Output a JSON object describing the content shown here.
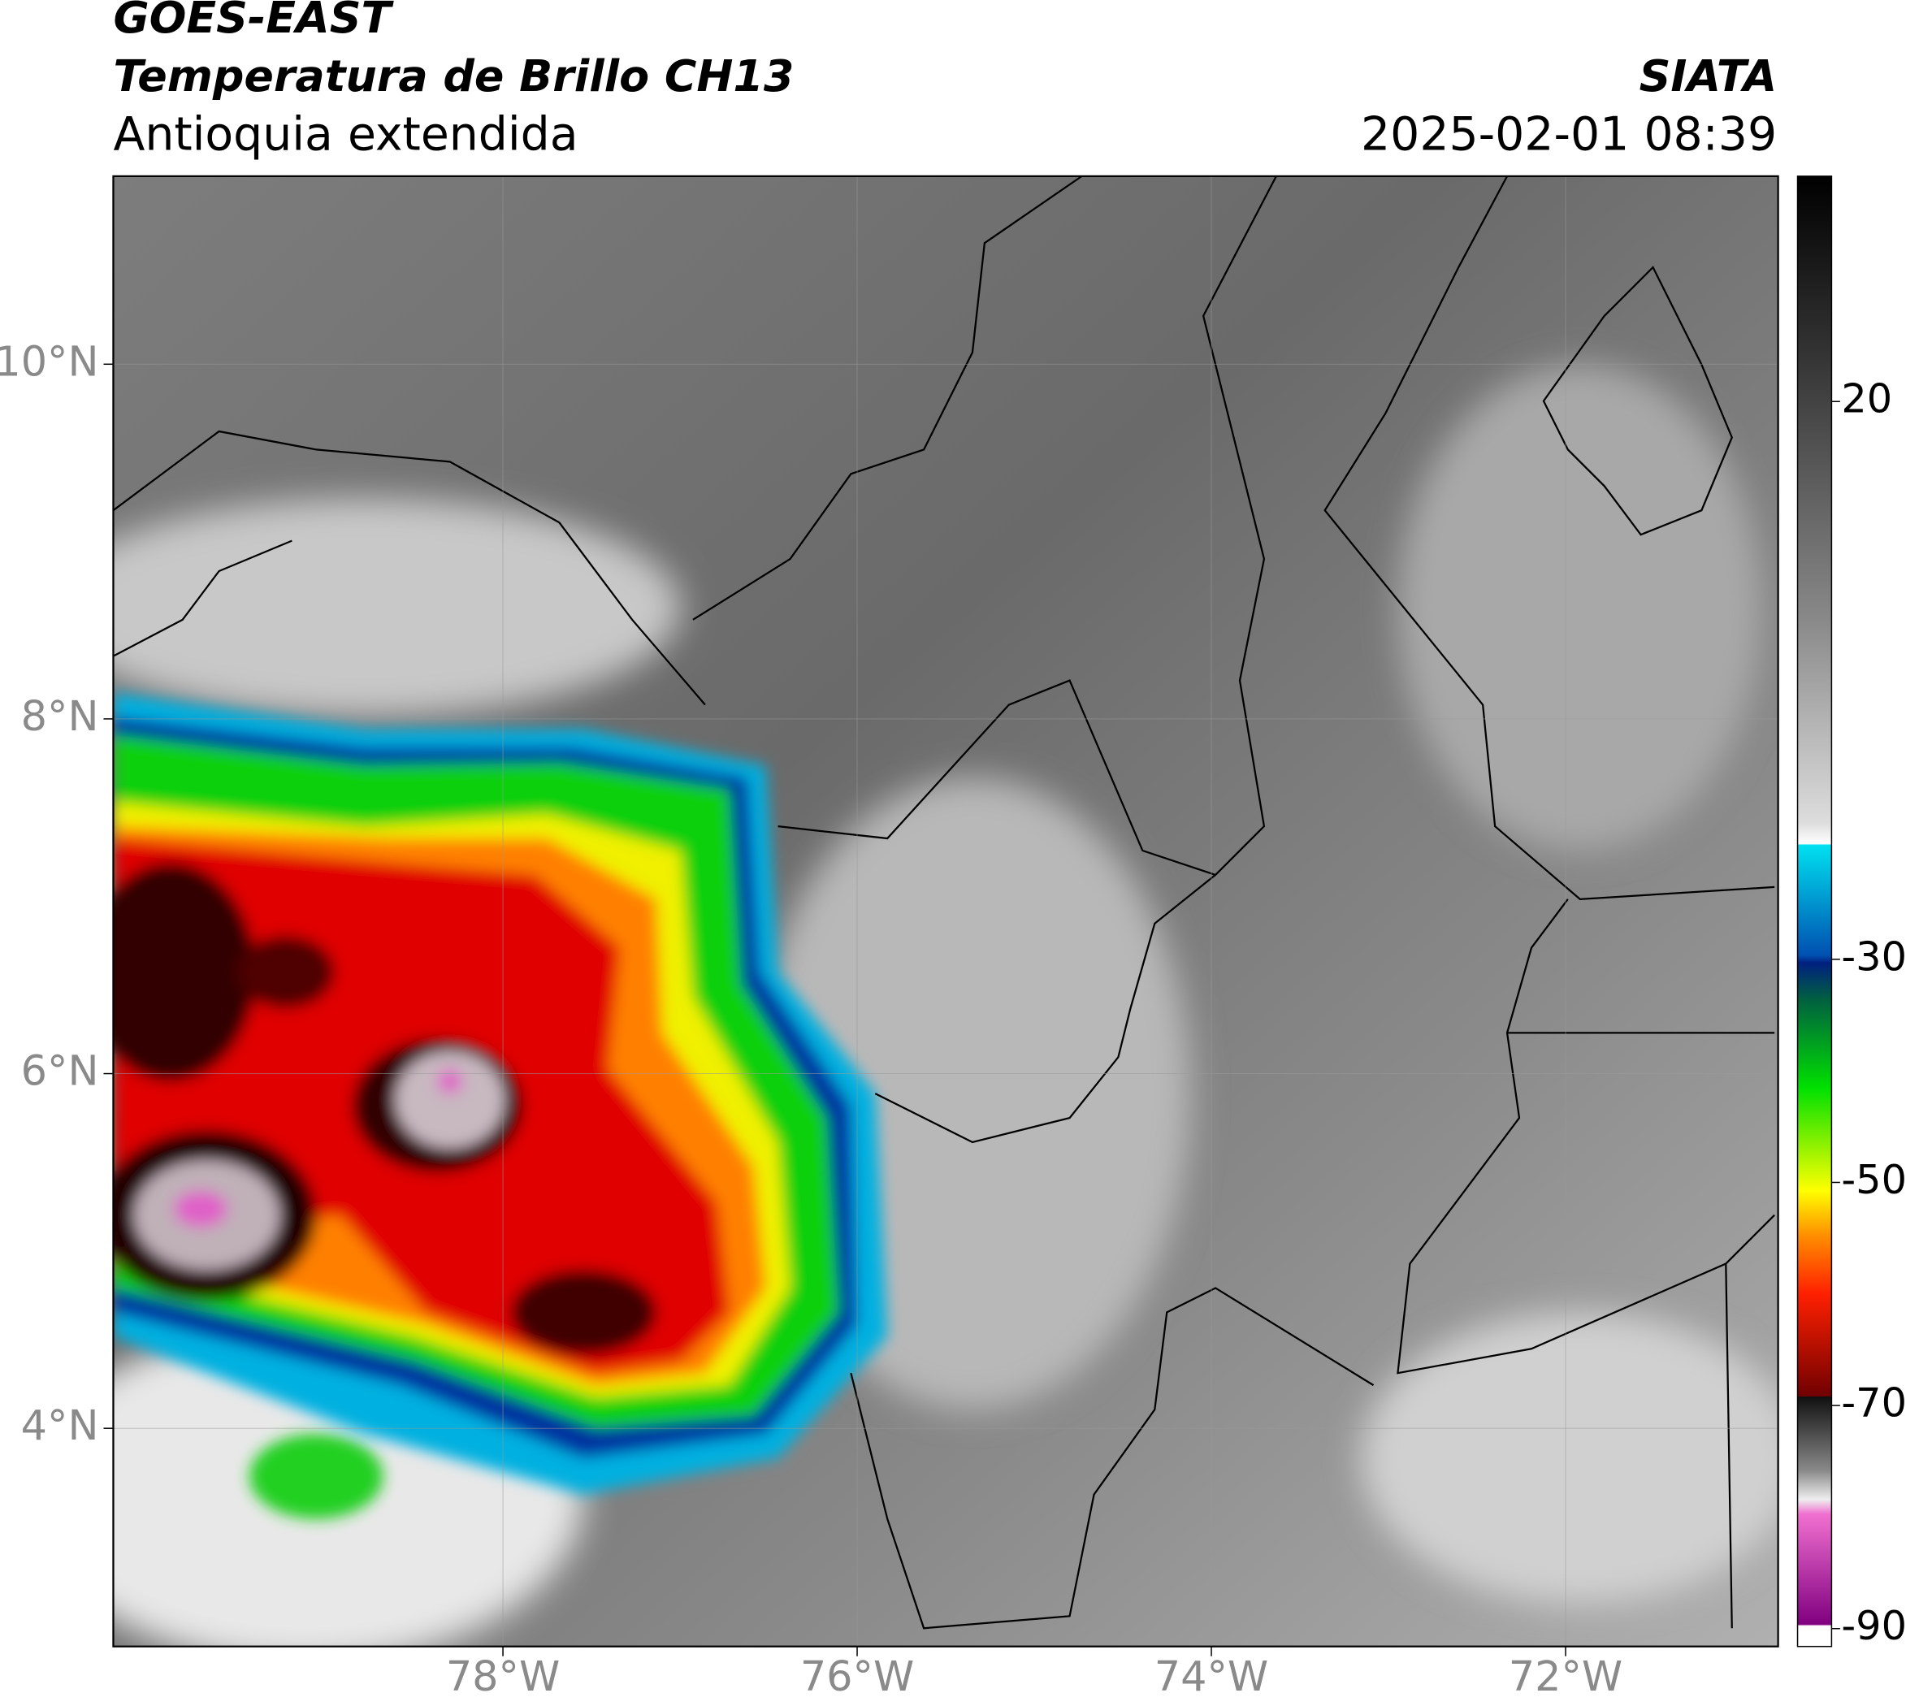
{
  "header": {
    "title": "GOES-EAST",
    "subtitle": "Temperatura de Brillo CH13",
    "region": "Antioquia extendida",
    "source": "SIATA",
    "datetime": "2025-02-01 08:39"
  },
  "map": {
    "xlim": [
      -80.2,
      -70.8
    ],
    "ylim": [
      2.77,
      11.06
    ],
    "xticks": [
      {
        "value": -78,
        "label": "78°W"
      },
      {
        "value": -76,
        "label": "76°W"
      },
      {
        "value": -74,
        "label": "74°W"
      },
      {
        "value": -72,
        "label": "72°W"
      }
    ],
    "yticks": [
      {
        "value": 4,
        "label": "4°N"
      },
      {
        "value": 6,
        "label": "6°N"
      },
      {
        "value": 8,
        "label": "8°N"
      },
      {
        "value": 10,
        "label": "10°N"
      }
    ],
    "grid": true,
    "colorbar": {
      "lim": [
        -91.6,
        40.2
      ],
      "ticks": [
        20,
        -30,
        -50,
        -70,
        -90
      ]
    }
  }
}
